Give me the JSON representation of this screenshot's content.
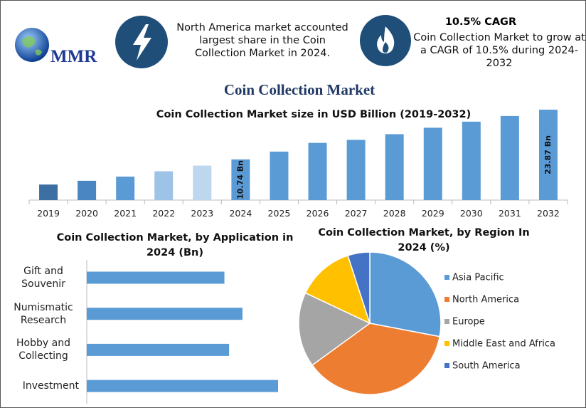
{
  "header": {
    "logo": "MMR",
    "highlight_1": "North America market accounted largest share in the Coin Collection Market in 2024.",
    "highlight_2_title": "10.5% CAGR",
    "highlight_2": "Coin Collection Market to grow at a CAGR of 10.5% during 2024-2032",
    "title": "Coin Collection Market"
  },
  "chart_data": [
    {
      "type": "bar",
      "title": "Coin Collection Market size in USD Billion (2019-2032)",
      "categories": [
        "2019",
        "2020",
        "2021",
        "2022",
        "2023",
        "2024",
        "2025",
        "2026",
        "2027",
        "2028",
        "2029",
        "2030",
        "2031",
        "2032"
      ],
      "values": [
        4.1,
        5.1,
        6.2,
        7.6,
        9.1,
        10.74,
        12.8,
        15.1,
        15.9,
        17.4,
        19.1,
        20.7,
        22.2,
        23.87
      ],
      "value_labels": [
        null,
        null,
        null,
        null,
        null,
        "10.74 Bn",
        null,
        null,
        null,
        null,
        null,
        null,
        null,
        "23.87 Bn"
      ],
      "colors": [
        "#3d6fa3",
        "#4a86c2",
        "#5b9bd5",
        "#9dc3e6",
        "#bdd7ee",
        "#5b9bd5",
        "#5b9bd5",
        "#5b9bd5",
        "#5b9bd5",
        "#5b9bd5",
        "#5b9bd5",
        "#5b9bd5",
        "#5b9bd5",
        "#5b9bd5"
      ]
    },
    {
      "type": "bar",
      "orientation": "horizontal",
      "title": "Coin Collection Market, by Application in 2024 (Bn)",
      "categories": [
        "Gift and Souvenir",
        "Numismatic Research",
        "Hobby and Collecting",
        "Investment"
      ],
      "values": [
        2.36,
        2.67,
        2.44,
        3.28
      ],
      "color": "#5b9bd5"
    },
    {
      "type": "pie",
      "title": "Coin Collection Market, by Region In 2024 (%)",
      "categories": [
        "Asia Pacific",
        "North America",
        "Europe",
        "Middle East and Africa",
        "South America"
      ],
      "values": [
        28,
        37,
        17,
        13,
        5
      ],
      "colors": [
        "#5b9bd5",
        "#ed7d31",
        "#a5a5a5",
        "#ffc000",
        "#4472c4"
      ]
    }
  ]
}
